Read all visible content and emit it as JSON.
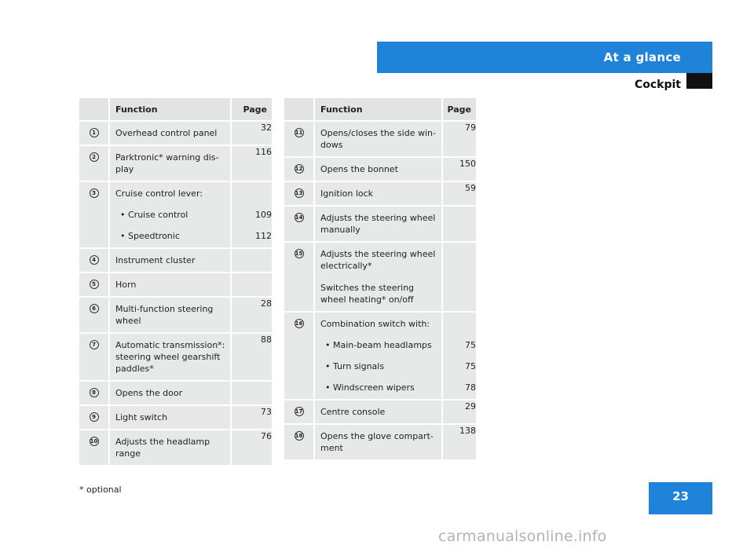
{
  "header": {
    "section": "At a glance",
    "subsection": "Cockpit"
  },
  "page_number": "23",
  "footnote": "* optional",
  "watermark": "carmanualsonline.info",
  "table_headers": {
    "function": "Function",
    "page": "Page"
  },
  "left_table": [
    {
      "num": "1",
      "lines": [
        "Overhead control panel"
      ],
      "page": "32"
    },
    {
      "num": "2",
      "lines": [
        "Parktronic* warning dis-",
        "play"
      ],
      "page": "116"
    },
    {
      "num": "3",
      "lines": [
        "Cruise control lever:"
      ],
      "subitems": [
        {
          "label": "Cruise control",
          "page": "109"
        },
        {
          "label": "Speedtronic",
          "page": "112"
        }
      ],
      "page": ""
    },
    {
      "num": "4",
      "lines": [
        "Instrument cluster"
      ],
      "page": ""
    },
    {
      "num": "5",
      "lines": [
        "Horn"
      ],
      "page": ""
    },
    {
      "num": "6",
      "lines": [
        "Multi-function steering",
        "wheel"
      ],
      "page": "28"
    },
    {
      "num": "7",
      "lines": [
        "Automatic transmission*:",
        "steering wheel gearshift",
        "paddles*"
      ],
      "page": "88"
    },
    {
      "num": "8",
      "lines": [
        "Opens the door"
      ],
      "page": ""
    },
    {
      "num": "9",
      "lines": [
        "Light switch"
      ],
      "page": "73"
    },
    {
      "num": "10",
      "lines": [
        "Adjusts the headlamp",
        "range"
      ],
      "page": "76"
    }
  ],
  "right_table": [
    {
      "num": "11",
      "lines": [
        "Opens/closes the side win-",
        "dows"
      ],
      "page": "79"
    },
    {
      "num": "12",
      "lines": [
        "Opens the bonnet"
      ],
      "page": "150"
    },
    {
      "num": "13",
      "lines": [
        "Ignition lock"
      ],
      "page": "59"
    },
    {
      "num": "14",
      "lines": [
        "Adjusts the steering wheel",
        "manually"
      ],
      "page": ""
    },
    {
      "num": "15",
      "lines": [
        "Adjusts the steering wheel",
        "electrically*"
      ],
      "extra": [
        "Switches the steering",
        "wheel heating* on/off"
      ],
      "page": ""
    },
    {
      "num": "16",
      "lines": [
        "Combination switch with:"
      ],
      "subitems": [
        {
          "label": "Main-beam headlamps",
          "page": "75"
        },
        {
          "label": "Turn signals",
          "page": "75"
        },
        {
          "label": "Windscreen wipers",
          "page": "78"
        }
      ],
      "page": ""
    },
    {
      "num": "17",
      "lines": [
        "Centre console"
      ],
      "page": "29"
    },
    {
      "num": "18",
      "lines": [
        "Opens the glove compart-",
        "ment"
      ],
      "page": "138"
    }
  ]
}
